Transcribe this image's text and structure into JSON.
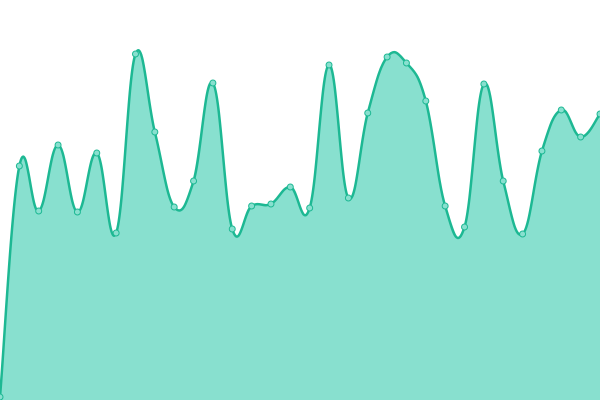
{
  "chart_data": {
    "type": "area",
    "values": [
      3,
      234,
      189,
      255,
      188,
      247,
      167,
      346,
      268,
      193,
      219,
      317,
      171,
      194,
      196,
      213,
      192,
      335,
      202,
      287,
      343,
      337,
      299,
      194,
      173,
      316,
      219,
      166,
      249,
      290,
      263,
      286
    ],
    "ylim": [
      0,
      400
    ],
    "color": "#88e0cf",
    "line_color": "#1db893",
    "markers": true,
    "grid": false
  }
}
